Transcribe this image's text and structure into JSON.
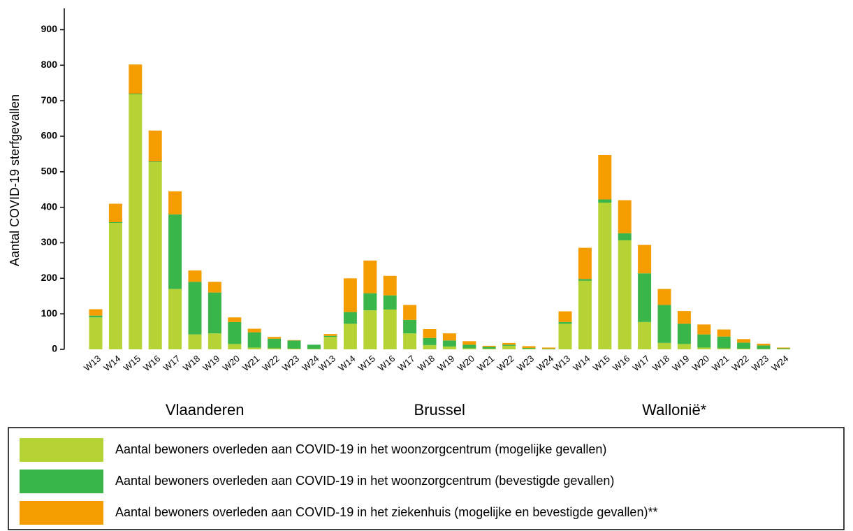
{
  "chart_data": {
    "type": "stacked_bar",
    "ylabel": "Aantal COVID-19 sterfgevallen",
    "groups": [
      "Vlaanderen",
      "Brussel",
      "Wallonië*"
    ],
    "categories": [
      "W13",
      "W14",
      "W15",
      "W16",
      "W17",
      "W18",
      "W19",
      "W20",
      "W21",
      "W22",
      "W23",
      "W24"
    ],
    "ylim": [
      0,
      960
    ],
    "yticks": [
      0,
      100,
      200,
      300,
      400,
      500,
      600,
      700,
      800,
      900
    ],
    "series": [
      {
        "name": "Aantal bewoners overleden aan COVID-19 in het woonzorgcentrum (mogelijke gevallen)",
        "color": "#b5d334",
        "values": [
          [
            90,
            356,
            718,
            527,
            170,
            42,
            45,
            15,
            5,
            3,
            2,
            1
          ],
          [
            35,
            72,
            110,
            112,
            45,
            12,
            8,
            3,
            2,
            10,
            2,
            1
          ],
          [
            72,
            193,
            413,
            307,
            77,
            18,
            15,
            5,
            3,
            2,
            1,
            1
          ]
        ]
      },
      {
        "name": "Aantal bewoners overleden aan COVID-19 in het woonzorgcentrum (bevestigde gevallen)",
        "color": "#39b54a",
        "values": [
          [
            5,
            2,
            2,
            2,
            210,
            148,
            115,
            62,
            43,
            27,
            23,
            12
          ],
          [
            3,
            33,
            48,
            40,
            38,
            20,
            17,
            10,
            5,
            3,
            2,
            1
          ],
          [
            5,
            5,
            9,
            20,
            137,
            107,
            57,
            37,
            33,
            17,
            10,
            2
          ]
        ]
      },
      {
        "name": "Aantal bewoners overleden aan COVID-19 in het ziekenhuis (mogelijke en bevestigde gevallen)**",
        "color": "#f59c00",
        "values": [
          [
            18,
            52,
            82,
            87,
            65,
            32,
            30,
            13,
            10,
            5,
            1,
            0
          ],
          [
            5,
            95,
            92,
            55,
            42,
            25,
            20,
            10,
            3,
            5,
            5,
            3
          ],
          [
            30,
            88,
            125,
            93,
            80,
            45,
            36,
            28,
            20,
            10,
            5,
            2
          ]
        ]
      }
    ]
  }
}
